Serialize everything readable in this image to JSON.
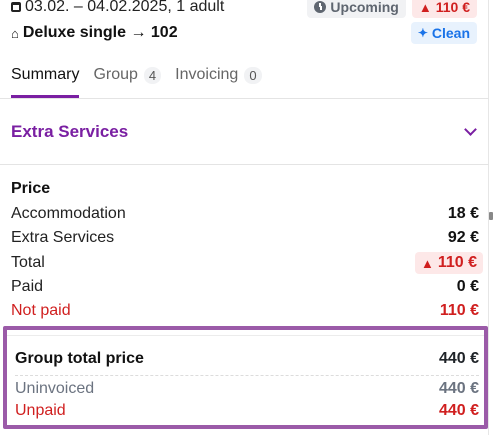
{
  "header": {
    "dates": "03.02. – 04.02.2025, 1 adult",
    "status_badge": "Upcoming",
    "warning_badge": "110 €",
    "room": "Deluxe single → 102",
    "clean_badge": "Clean"
  },
  "tabs": [
    {
      "label": "Summary",
      "count": ""
    },
    {
      "label": "Group",
      "count": "4"
    },
    {
      "label": "Invoicing",
      "count": "0"
    }
  ],
  "extra_services": {
    "title": "Extra Services"
  },
  "price": {
    "title": "Price",
    "rows": [
      {
        "label": "Accommodation",
        "value": "18 €"
      },
      {
        "label": "Extra Services",
        "value": "92 €"
      },
      {
        "label": "Total",
        "value": "110 €"
      },
      {
        "label": "Paid",
        "value": "0 €"
      },
      {
        "label": "Not paid",
        "value": "110 €"
      }
    ]
  },
  "group": {
    "total_label": "Group total price",
    "total_value": "440 €",
    "uninvoiced_label": "Uninvoiced",
    "uninvoiced_value": "440 €",
    "unpaid_label": "Unpaid",
    "unpaid_value": "440 €"
  },
  "colors": {
    "accent": "#7a1fa2",
    "danger": "#d01f1f",
    "info": "#1a73e8",
    "highlight_border": "#9b5ba8"
  }
}
